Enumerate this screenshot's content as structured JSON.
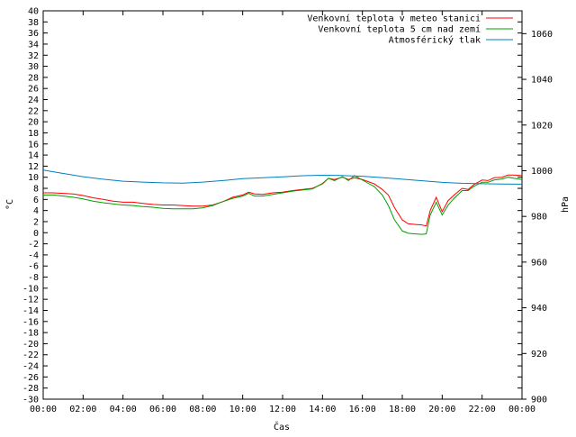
{
  "chart_data": {
    "type": "line",
    "title": "",
    "xlabel": "Čas",
    "ylabel_left": "°C",
    "ylabel_right": "hPa",
    "ylim_left": [
      -30,
      40
    ],
    "ylim_right": [
      900,
      1070
    ],
    "x_ticks": [
      "00:00",
      "02:00",
      "04:00",
      "06:00",
      "08:00",
      "10:00",
      "12:00",
      "14:00",
      "16:00",
      "18:00",
      "20:00",
      "22:00",
      "00:00"
    ],
    "x_range_hours": [
      0,
      24
    ],
    "y_left_ticks": [
      40,
      38,
      36,
      34,
      32,
      30,
      28,
      26,
      24,
      22,
      20,
      18,
      16,
      14,
      12,
      10,
      8,
      6,
      4,
      2,
      0,
      -2,
      -4,
      -6,
      -8,
      -10,
      -12,
      -14,
      -16,
      -18,
      -20,
      -22,
      -24,
      -26,
      -28,
      -30
    ],
    "y_right_ticks": [
      1060,
      1040,
      1020,
      1000,
      980,
      960,
      940,
      920,
      900
    ],
    "legend_position": "top-right",
    "grid": false,
    "series": [
      {
        "name": "Venkovní teplota v meteo stanici",
        "color": "#ff0000",
        "axis": "left",
        "x": [
          0,
          0.5,
          1,
          1.5,
          2,
          2.5,
          3,
          3.5,
          4,
          4.5,
          5,
          5.5,
          6,
          6.5,
          7,
          7.5,
          8,
          8.5,
          9,
          9.5,
          10,
          10.3,
          10.6,
          11,
          11.5,
          12,
          12.5,
          13,
          13.5,
          14,
          14.3,
          14.6,
          15,
          15.3,
          15.6,
          16,
          16.3,
          16.6,
          17,
          17.3,
          17.6,
          18,
          18.3,
          18.6,
          19,
          19.2,
          19.4,
          19.7,
          20,
          20.3,
          20.6,
          21,
          21.3,
          21.6,
          22,
          22.3,
          22.6,
          23,
          23.3,
          23.6,
          24
        ],
        "values": [
          7.2,
          7.2,
          7.1,
          7.0,
          6.7,
          6.3,
          6.0,
          5.7,
          5.5,
          5.5,
          5.3,
          5.1,
          5.0,
          5.0,
          4.9,
          4.8,
          4.8,
          5.0,
          5.6,
          6.4,
          6.8,
          7.3,
          7.0,
          6.9,
          7.2,
          7.3,
          7.6,
          7.8,
          8.0,
          8.8,
          9.8,
          9.6,
          10.0,
          9.6,
          9.9,
          9.6,
          9.2,
          8.8,
          7.8,
          6.8,
          4.6,
          2.3,
          1.6,
          1.5,
          1.4,
          1.2,
          4.0,
          6.4,
          3.8,
          5.8,
          6.8,
          8.0,
          7.8,
          8.7,
          9.5,
          9.4,
          9.9,
          10.0,
          10.4,
          10.4,
          10.3
        ]
      },
      {
        "name": "Venkovní teplota 5 cm nad zemí",
        "color": "#00a000",
        "axis": "left",
        "x": [
          0,
          0.5,
          1,
          1.5,
          2,
          2.5,
          3,
          3.5,
          4,
          4.5,
          5,
          5.5,
          6,
          6.5,
          7,
          7.5,
          8,
          8.5,
          9,
          9.5,
          10,
          10.3,
          10.6,
          11,
          11.5,
          12,
          12.5,
          13,
          13.5,
          14,
          14.3,
          14.6,
          15,
          15.3,
          15.6,
          16,
          16.3,
          16.6,
          17,
          17.3,
          17.6,
          18,
          18.3,
          18.6,
          19,
          19.2,
          19.4,
          19.7,
          20,
          20.3,
          20.6,
          21,
          21.3,
          21.6,
          22,
          22.3,
          22.6,
          23,
          23.3,
          23.6,
          24
        ],
        "values": [
          6.8,
          6.8,
          6.6,
          6.4,
          6.1,
          5.7,
          5.4,
          5.2,
          5.0,
          4.9,
          4.7,
          4.6,
          4.4,
          4.3,
          4.3,
          4.3,
          4.5,
          4.9,
          5.6,
          6.2,
          6.6,
          7.1,
          6.6,
          6.6,
          6.9,
          7.2,
          7.5,
          7.7,
          7.9,
          8.9,
          9.8,
          9.4,
          10.1,
          9.4,
          10.3,
          9.5,
          8.9,
          8.3,
          6.8,
          4.9,
          2.4,
          0.3,
          -0.1,
          -0.2,
          -0.3,
          -0.2,
          3.2,
          5.5,
          3.2,
          5.0,
          6.2,
          7.6,
          7.6,
          8.4,
          9.1,
          9.1,
          9.5,
          9.7,
          10.0,
          9.8,
          9.6
        ]
      },
      {
        "name": "Atmosférický tlak",
        "color": "#0080c0",
        "axis": "right",
        "x": [
          0,
          1,
          2,
          3,
          4,
          5,
          6,
          7,
          8,
          9,
          10,
          11,
          12,
          13,
          14,
          15,
          16,
          17,
          18,
          19,
          20,
          21,
          22,
          23,
          24
        ],
        "values": [
          1000.3,
          998.8,
          997.4,
          996.3,
          995.4,
          995.0,
          994.7,
          994.6,
          995.0,
          995.7,
          996.5,
          996.9,
          997.3,
          997.8,
          998.0,
          997.9,
          997.6,
          997.0,
          996.3,
          995.6,
          994.9,
          994.5,
          994.3,
          994.2,
          994.1
        ]
      }
    ]
  }
}
